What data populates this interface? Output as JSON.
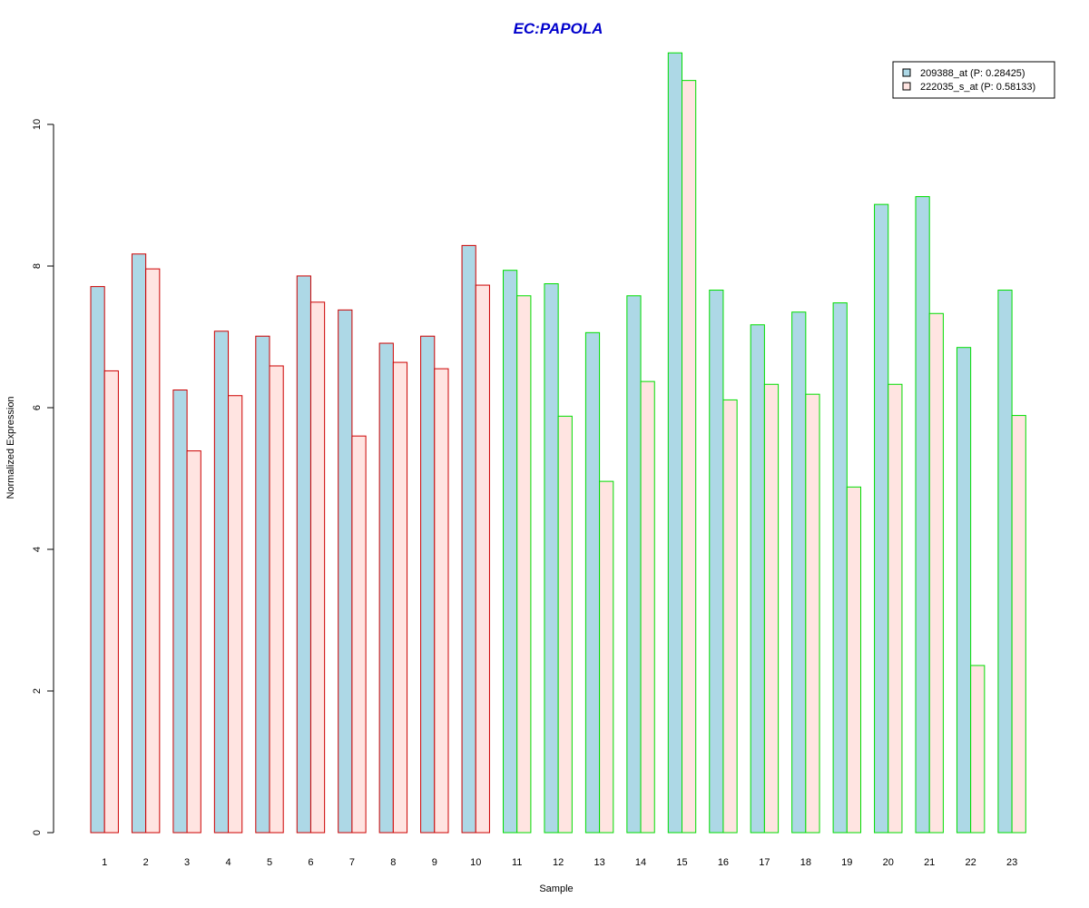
{
  "chart_data": {
    "type": "bar",
    "title": "EC:PAPOLA",
    "xlabel": "Sample",
    "ylabel": "Normalized Expression",
    "ylim": [
      0,
      11
    ],
    "yticks": [
      0,
      2,
      4,
      6,
      8,
      10
    ],
    "categories": [
      "1",
      "2",
      "3",
      "4",
      "5",
      "6",
      "7",
      "8",
      "9",
      "10",
      "11",
      "12",
      "13",
      "14",
      "15",
      "16",
      "17",
      "18",
      "19",
      "20",
      "21",
      "22",
      "23"
    ],
    "series": [
      {
        "name": "209388_at (P: 0.28425)",
        "fill": "#add8e6",
        "values": [
          7.71,
          8.17,
          6.25,
          7.08,
          7.01,
          7.86,
          7.38,
          6.91,
          7.01,
          8.29,
          7.94,
          7.75,
          7.06,
          7.58,
          11.01,
          7.66,
          7.17,
          7.35,
          7.48,
          8.87,
          8.98,
          6.85,
          7.66
        ]
      },
      {
        "name": "222035_s_at (P: 0.58133)",
        "fill": "#ffe4e1",
        "values": [
          6.52,
          7.96,
          5.39,
          6.17,
          6.59,
          7.49,
          5.6,
          6.64,
          6.55,
          7.73,
          7.58,
          5.88,
          4.96,
          6.37,
          10.62,
          6.11,
          6.33,
          6.19,
          4.88,
          6.33,
          7.33,
          2.36,
          5.89
        ]
      }
    ],
    "group_border_colors": [
      "#cc0000",
      "#cc0000",
      "#cc0000",
      "#cc0000",
      "#cc0000",
      "#cc0000",
      "#cc0000",
      "#cc0000",
      "#cc0000",
      "#cc0000",
      "#00dd00",
      "#00dd00",
      "#00dd00",
      "#00dd00",
      "#00dd00",
      "#00dd00",
      "#00dd00",
      "#00dd00",
      "#00dd00",
      "#00dd00",
      "#00dd00",
      "#00dd00",
      "#00dd00"
    ],
    "legend_position": "top-right",
    "grid": false
  }
}
